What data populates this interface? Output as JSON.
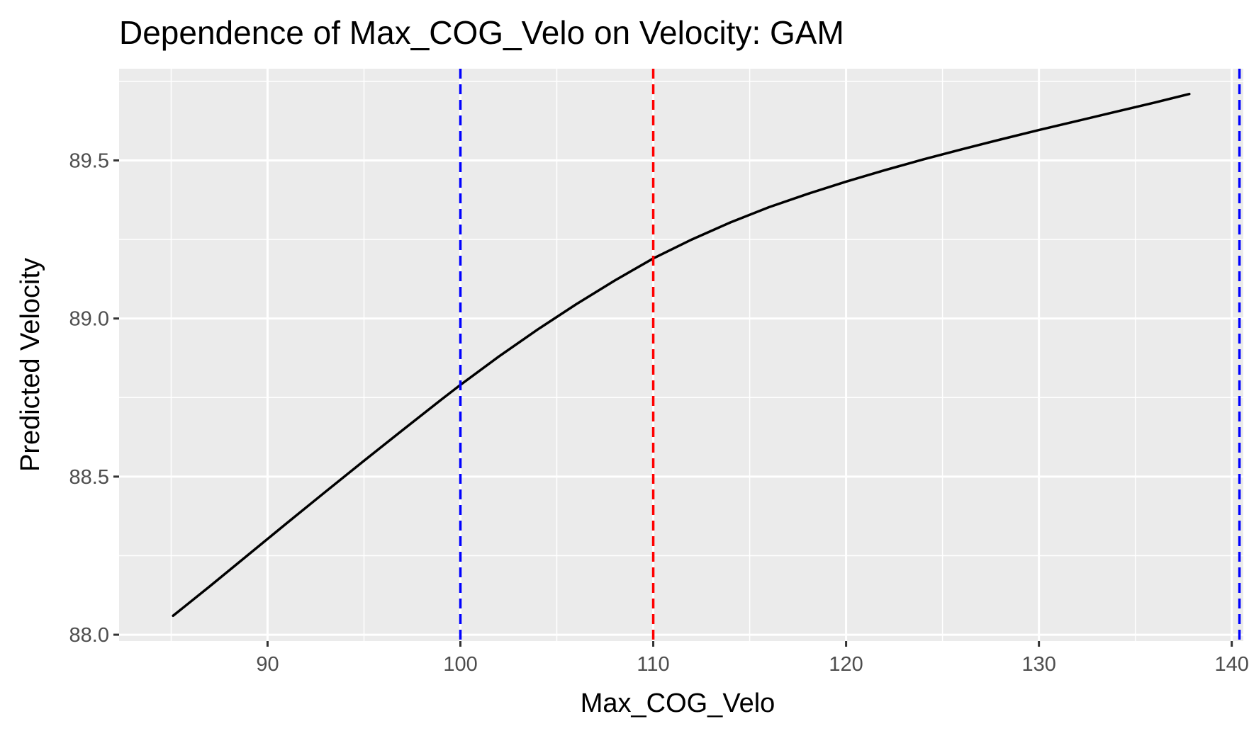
{
  "chart_data": {
    "type": "line",
    "title": "Dependence of Max_COG_Velo on Velocity: GAM",
    "xlabel": "Max_COG_Velo",
    "ylabel": "Predicted Velocity",
    "xlim": [
      82.3,
      140.6
    ],
    "ylim": [
      87.98,
      89.79
    ],
    "x_ticks": [
      90,
      100,
      110,
      120,
      130,
      140
    ],
    "x_tick_labels": [
      "90",
      "100",
      "110",
      "120",
      "130",
      "140"
    ],
    "x_minor_ticks": [
      85,
      95,
      105,
      115,
      125,
      135
    ],
    "y_ticks": [
      88.0,
      88.5,
      89.0,
      89.5
    ],
    "y_tick_labels": [
      "88.0",
      "88.5",
      "89.0",
      "89.5"
    ],
    "y_minor_ticks": [
      88.25,
      88.75,
      89.25,
      89.75
    ],
    "grid": true,
    "legend": "none",
    "series": [
      {
        "color": "#000000",
        "x": [
          85.1,
          87,
          89,
          91,
          93,
          95,
          97,
          99,
          100,
          102,
          104,
          106,
          108,
          110,
          112,
          114,
          116,
          118,
          120,
          122,
          124,
          126,
          128,
          130,
          132,
          134,
          136,
          137.8
        ],
        "y": [
          88.06,
          88.153,
          88.253,
          88.353,
          88.452,
          88.55,
          88.647,
          88.743,
          88.79,
          88.88,
          88.965,
          89.045,
          89.12,
          89.19,
          89.25,
          89.304,
          89.352,
          89.394,
          89.433,
          89.469,
          89.503,
          89.535,
          89.566,
          89.596,
          89.625,
          89.654,
          89.683,
          89.71
        ]
      }
    ],
    "reference_lines": [
      {
        "axis": "x",
        "value": 100,
        "color": "#0000ff",
        "style": "dashed"
      },
      {
        "axis": "x",
        "value": 110,
        "color": "#ff0000",
        "style": "dashed"
      },
      {
        "axis": "x",
        "value": 140.4,
        "color": "#0000ff",
        "style": "dashed"
      }
    ],
    "colors": {
      "panel": "#ebebeb",
      "grid": "#ffffff",
      "tick_text": "#4d4d4d"
    }
  }
}
